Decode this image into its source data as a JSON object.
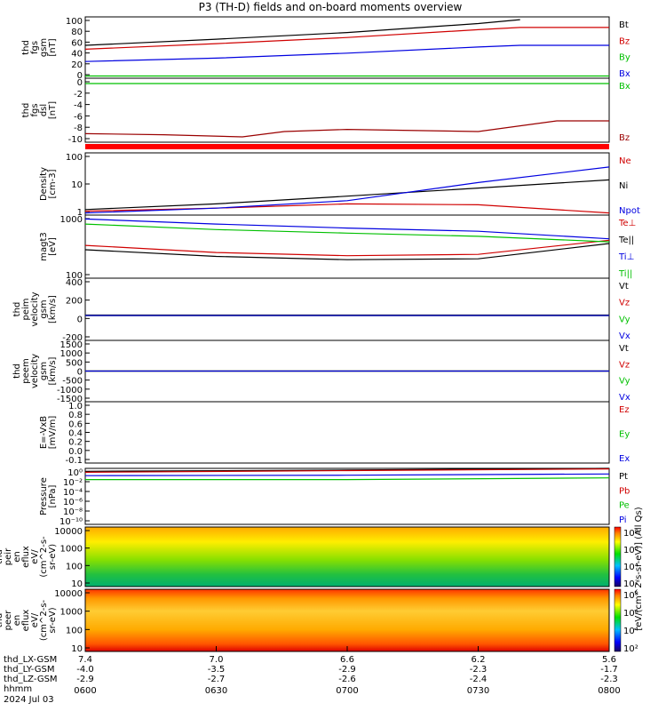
{
  "chart_data": {
    "type": "line",
    "title": "P3 (TH-D) fields and on-board moments overview",
    "x_time": {
      "ticks": [
        "0600",
        "0630",
        "0700",
        "0730",
        "0800"
      ],
      "date": "2024 Jul 03",
      "ephem_labels": [
        "thd_LX-GSM",
        "thd_LY-GSM",
        "thd_LZ-GSM",
        "hhmm"
      ],
      "ephem_rows": [
        [
          "7.4",
          "7.0",
          "6.6",
          "6.2",
          "5.6"
        ],
        [
          "-4.0",
          "-3.5",
          "-2.9",
          "-2.3",
          "-1.7"
        ],
        [
          "-2.9",
          "-2.7",
          "-2.6",
          "-2.4",
          "-2.3"
        ]
      ]
    },
    "panels": [
      {
        "id": "fgs",
        "ylabel": [
          "thd",
          "fgs",
          "gsm",
          "[nT]"
        ],
        "ylim": [
          -5,
          105
        ],
        "yticks": [
          "100",
          "80",
          "60",
          "40",
          "20",
          "0"
        ],
        "series": [
          {
            "name": "Bt",
            "color": "#000000",
            "x": [
              0,
              0.25,
              0.5,
              0.75,
              0.83
            ],
            "y": [
              54,
              65,
              77,
              93,
              100
            ]
          },
          {
            "name": "Bz",
            "color": "#d00000",
            "x": [
              0,
              0.25,
              0.5,
              0.75,
              0.83,
              1.0
            ],
            "y": [
              47,
              57,
              68,
              82,
              86,
              86
            ]
          },
          {
            "name": "By",
            "color": "#00c000",
            "x": [
              0,
              0.5,
              1.0
            ],
            "y": [
              -1,
              -1,
              -1
            ]
          },
          {
            "name": "Bx",
            "color": "#0000e0",
            "x": [
              0,
              0.25,
              0.5,
              0.75,
              0.83,
              1.0
            ],
            "y": [
              25,
              31,
              40,
              51,
              54,
              54
            ]
          }
        ]
      },
      {
        "id": "fgs-dsl",
        "ylabel": [
          "thd",
          "fgs",
          "dsl",
          "[nT]"
        ],
        "ylim": [
          -11,
          1
        ],
        "yticks": [
          "0",
          "-2",
          "-4",
          "-6",
          "-8",
          "-10"
        ],
        "series": [
          {
            "name": "Bx",
            "color": "#00c000",
            "x": [
              0,
              0.5,
              1.0
            ],
            "y": [
              0,
              0,
              0
            ]
          },
          {
            "name": "Bz",
            "color": "#9a0000",
            "x": [
              0,
              0.15,
              0.3,
              0.38,
              0.5,
              0.75,
              0.9,
              1.0
            ],
            "y": [
              -9.4,
              -9.6,
              -10.0,
              -9.0,
              -8.6,
              -9.0,
              -7.0,
              -7.0
            ]
          }
        ]
      },
      {
        "id": "density",
        "ylabel": [
          "Density",
          "[cm-3]"
        ],
        "log": true,
        "ylim": [
          0.5,
          100
        ],
        "yticks": [
          "100",
          "10",
          "1"
        ],
        "series": [
          {
            "name": "Ne",
            "color": "#d00000",
            "x": [
              0,
              0.25,
              0.5,
              0.75,
              1.0
            ],
            "y": [
              0.7,
              0.9,
              1.3,
              1.2,
              0.6
            ]
          },
          {
            "name": "Ni",
            "color": "#000000",
            "x": [
              0,
              0.25,
              0.5,
              0.75,
              1.0
            ],
            "y": [
              0.8,
              1.3,
              2.5,
              5,
              10
            ]
          },
          {
            "name": "Npot",
            "color": "#0000e0",
            "x": [
              0,
              0.25,
              0.5,
              0.75,
              1.0
            ],
            "y": [
              0.6,
              0.9,
              1.7,
              8,
              30
            ]
          }
        ]
      },
      {
        "id": "temperature",
        "ylabel": [
          "magt3",
          "[eV]"
        ],
        "log": true,
        "ylim": [
          70,
          2500
        ],
        "yticks": [
          "1000",
          "100"
        ],
        "series": [
          {
            "name": "Te⊥",
            "color": "#d00000",
            "x": [
              0,
              0.25,
              0.5,
              0.75,
              1.0
            ],
            "y": [
              450,
              300,
              250,
              270,
              600
            ]
          },
          {
            "name": "Te||",
            "color": "#000000",
            "x": [
              0,
              0.25,
              0.5,
              0.75,
              1.0
            ],
            "y": [
              350,
              240,
              200,
              210,
              500
            ]
          },
          {
            "name": "Ti⊥",
            "color": "#0000e0",
            "x": [
              0,
              0.25,
              0.5,
              0.75,
              1.0
            ],
            "y": [
              2000,
              1500,
              1200,
              1000,
              650
            ]
          },
          {
            "name": "Ti||",
            "color": "#00c000",
            "x": [
              0,
              0.25,
              0.5,
              0.75,
              1.0
            ],
            "y": [
              1500,
              1100,
              900,
              750,
              550
            ]
          }
        ]
      },
      {
        "id": "peim",
        "ylabel": [
          "thd",
          "peim",
          "velocity",
          "gsm",
          "[km/s]"
        ],
        "ylim": [
          -300,
          450
        ],
        "yticks": [
          "400",
          "200",
          "0",
          "-200"
        ],
        "series": [
          {
            "name": "Vt",
            "color": "#000000",
            "x": [
              0,
              1.0
            ],
            "y": [
              5,
              5
            ]
          },
          {
            "name": "Vz",
            "color": "#d00000",
            "x": [
              0,
              1.0
            ],
            "y": [
              0,
              0
            ]
          },
          {
            "name": "Vy",
            "color": "#00c000",
            "x": [
              0,
              1.0
            ],
            "y": [
              0,
              0
            ]
          },
          {
            "name": "Vx",
            "color": "#0000e0",
            "x": [
              0,
              1.0
            ],
            "y": [
              0,
              0
            ]
          }
        ]
      },
      {
        "id": "peem",
        "ylabel": [
          "thd",
          "peem",
          "velocity",
          "gsm",
          "[km/s]"
        ],
        "ylim": [
          -1500,
          1500
        ],
        "yticks": [
          "1500",
          "1000",
          "500",
          "0",
          "-500",
          "-1000",
          "-1500"
        ],
        "series": [
          {
            "name": "Vt",
            "color": "#000000",
            "x": [
              0,
              1.0
            ],
            "y": [
              0,
              0
            ]
          },
          {
            "name": "Vz",
            "color": "#d00000",
            "x": [
              0,
              1.0
            ],
            "y": [
              0,
              0
            ]
          },
          {
            "name": "Vy",
            "color": "#00c000",
            "x": [
              0,
              1.0
            ],
            "y": [
              0,
              0
            ]
          },
          {
            "name": "Vx",
            "color": "#0000e0",
            "x": [
              0,
              1.0
            ],
            "y": [
              0,
              0
            ]
          }
        ]
      },
      {
        "id": "efield",
        "ylabel": [
          "E=-VxB",
          "[mV/m]"
        ],
        "ylim": [
          -0.1,
          1.0
        ],
        "yticks": [
          "1.0",
          "0.8",
          "0.6",
          "0.4",
          "0.2",
          "0.0",
          "-0.1"
        ],
        "series": [
          {
            "name": "Ez",
            "color": "#d00000",
            "x": [],
            "y": []
          },
          {
            "name": "Ey",
            "color": "#00c000",
            "x": [],
            "y": []
          },
          {
            "name": "Ex",
            "color": "#0000e0",
            "x": [],
            "y": []
          }
        ]
      },
      {
        "id": "pressure",
        "ylabel": [
          "Pressure",
          "[nPa]"
        ],
        "log": true,
        "ylim": [
          1e-10,
          1
        ],
        "yticks": [
          "10⁰",
          "10⁻²",
          "10⁻⁴",
          "10⁻⁶",
          "10⁻⁸",
          "10⁻¹⁰"
        ],
        "series": [
          {
            "name": "Pt",
            "color": "#000000",
            "x": [
              0,
              0.5,
              1.0
            ],
            "y": [
              0.3,
              0.5,
              1
            ]
          },
          {
            "name": "Pb",
            "color": "#d00000",
            "x": [
              0,
              0.5,
              1.0
            ],
            "y": [
              0.2,
              0.4,
              0.8
            ]
          },
          {
            "name": "Pe",
            "color": "#00c000",
            "x": [
              0,
              0.5,
              1.0
            ],
            "y": [
              0.01,
              0.01,
              0.02
            ]
          },
          {
            "name": "Pi",
            "color": "#0000e0",
            "x": [
              0,
              0.5,
              1.0
            ],
            "y": [
              0.05,
              0.06,
              0.1
            ]
          }
        ]
      },
      {
        "id": "peir",
        "type": "heatmap",
        "ylabel": [
          "thd",
          "peir",
          "en",
          "eflux",
          "eV/",
          "(cm^2-s-",
          "sr-eV)"
        ],
        "yticks": [
          "10000",
          "1000",
          "100",
          "10"
        ],
        "colorbar_ticks": [
          "10⁸",
          "10⁶",
          "10⁴",
          "10²"
        ]
      },
      {
        "id": "peer",
        "type": "heatmap",
        "ylabel": [
          "thd",
          "peer",
          "en",
          "eflux",
          "eV/",
          "(cm^2-s-",
          "sr-eV)"
        ],
        "yticks": [
          "10000",
          "1000",
          "100",
          "10"
        ],
        "colorbar_ticks": [
          "10⁸",
          "10⁶",
          "10⁴",
          "10²"
        ]
      }
    ],
    "colorbar_label": "[eV/(cm^2-s-sr-eV)] (All Qs)"
  }
}
